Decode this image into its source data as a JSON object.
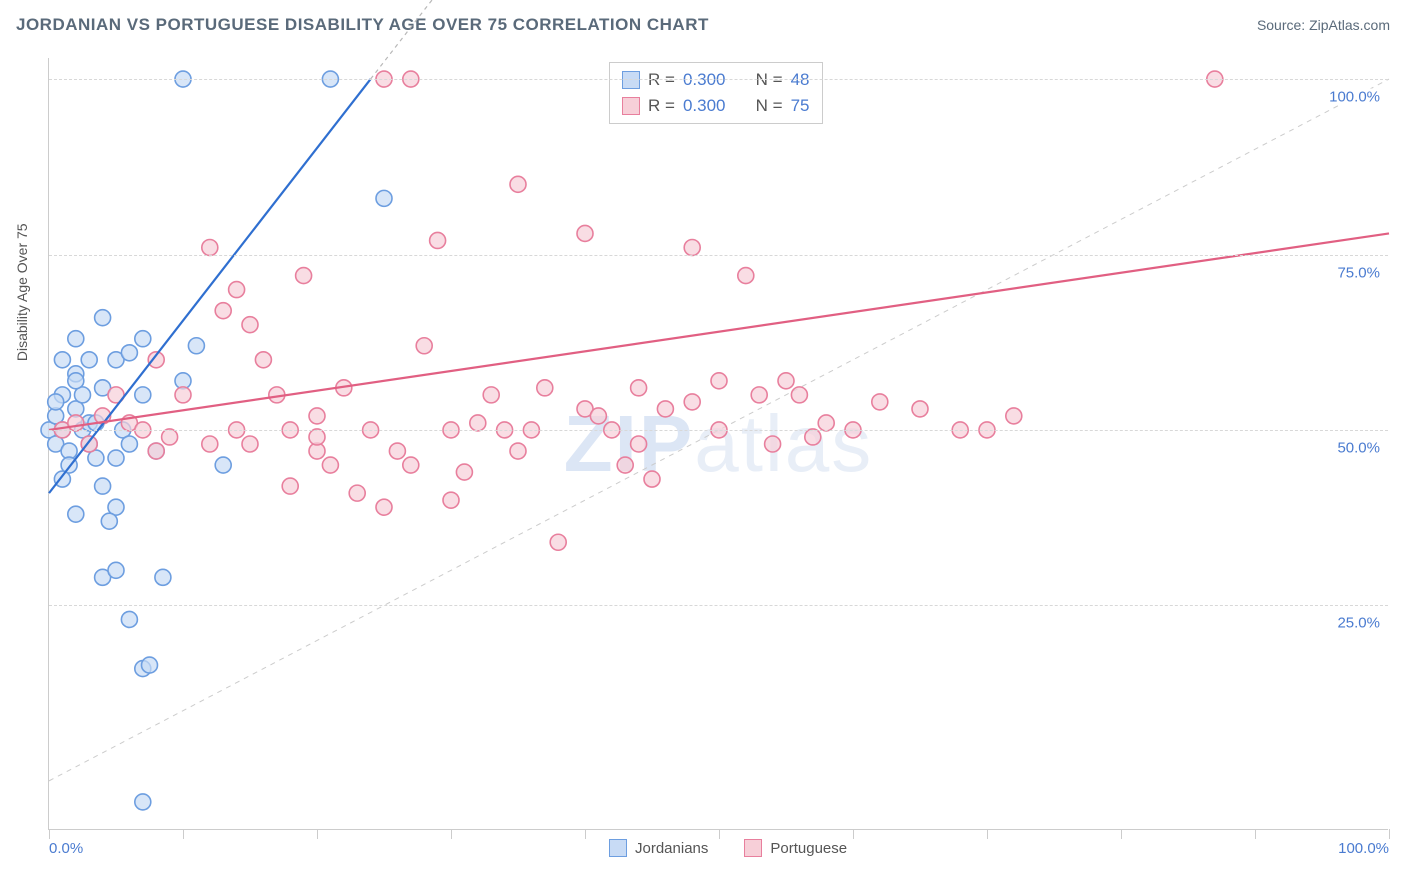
{
  "header": {
    "title": "JORDANIAN VS PORTUGUESE DISABILITY AGE OVER 75 CORRELATION CHART",
    "source_prefix": "Source: ",
    "source_name": "ZipAtlas.com"
  },
  "watermark": {
    "bold": "ZIP",
    "rest": "atlas"
  },
  "chart": {
    "type": "scatter",
    "ylabel": "Disability Age Over 75",
    "background_color": "#ffffff",
    "grid_color": "#d8d8d8",
    "axis_color": "#cccccc",
    "tick_label_color": "#4a7bd0",
    "xlim": [
      0,
      100
    ],
    "ylim": [
      -7,
      103
    ],
    "xtick_positions": [
      0,
      10,
      20,
      30,
      40,
      50,
      60,
      70,
      80,
      90,
      100
    ],
    "xtick_labels": {
      "0": "0.0%",
      "100": "100.0%"
    },
    "ytick_lines": [
      25,
      50,
      75,
      100
    ],
    "ytick_labels": {
      "25": "25.0%",
      "50": "50.0%",
      "75": "75.0%",
      "100": "100.0%"
    },
    "marker_radius": 8,
    "marker_stroke_width": 1.6,
    "series": {
      "jordanians": {
        "label": "Jordanians",
        "fill": "#c8dbf5",
        "stroke": "#6d9ee0",
        "fill_opacity": 0.7,
        "regression": {
          "x1": 0,
          "y1": 41,
          "x2": 24,
          "y2": 100,
          "color": "#2f6fd0",
          "width": 2.2,
          "extend_dashed_to_x": 42
        },
        "points": [
          [
            0,
            50
          ],
          [
            0.5,
            48
          ],
          [
            0.5,
            52
          ],
          [
            1,
            55
          ],
          [
            1,
            60
          ],
          [
            1,
            50
          ],
          [
            1.5,
            47
          ],
          [
            1.5,
            45
          ],
          [
            2,
            58
          ],
          [
            2,
            53
          ],
          [
            2,
            63
          ],
          [
            2,
            38
          ],
          [
            2.5,
            55
          ],
          [
            2.5,
            50
          ],
          [
            3,
            48
          ],
          [
            3,
            60
          ],
          [
            3,
            51
          ],
          [
            3.5,
            46
          ],
          [
            4,
            42
          ],
          [
            4,
            66
          ],
          [
            4,
            56
          ],
          [
            4,
            29
          ],
          [
            5,
            46
          ],
          [
            5,
            60
          ],
          [
            5,
            30
          ],
          [
            5,
            39
          ],
          [
            5.5,
            50
          ],
          [
            6,
            61
          ],
          [
            6,
            48
          ],
          [
            6,
            23
          ],
          [
            7,
            55
          ],
          [
            7,
            -3
          ],
          [
            7,
            63
          ],
          [
            7,
            16
          ],
          [
            7.5,
            16.5
          ],
          [
            8,
            47
          ],
          [
            8.5,
            29
          ],
          [
            10,
            100
          ],
          [
            10,
            57
          ],
          [
            11,
            62
          ],
          [
            13,
            45
          ],
          [
            21,
            100
          ],
          [
            25,
            83
          ],
          [
            4.5,
            37
          ],
          [
            3.5,
            51
          ],
          [
            2,
            57
          ],
          [
            1,
            43
          ],
          [
            0.5,
            54
          ]
        ]
      },
      "portuguese": {
        "label": "Portuguese",
        "fill": "#f7cfd8",
        "stroke": "#e87f9d",
        "fill_opacity": 0.7,
        "regression": {
          "x1": 0,
          "y1": 50,
          "x2": 100,
          "y2": 78,
          "color": "#e15f82",
          "width": 2.2
        },
        "points": [
          [
            1,
            50
          ],
          [
            2,
            51
          ],
          [
            3,
            48
          ],
          [
            4,
            52
          ],
          [
            5,
            55
          ],
          [
            6,
            51
          ],
          [
            7,
            50
          ],
          [
            8,
            47
          ],
          [
            8,
            60
          ],
          [
            9,
            49
          ],
          [
            10,
            55
          ],
          [
            12,
            48
          ],
          [
            12,
            76
          ],
          [
            13,
            67
          ],
          [
            14,
            50
          ],
          [
            14,
            70
          ],
          [
            15,
            48
          ],
          [
            15,
            65
          ],
          [
            16,
            60
          ],
          [
            17,
            55
          ],
          [
            18,
            50
          ],
          [
            18,
            42
          ],
          [
            19,
            72
          ],
          [
            20,
            47
          ],
          [
            20,
            52
          ],
          [
            21,
            45
          ],
          [
            22,
            56
          ],
          [
            23,
            41
          ],
          [
            24,
            50
          ],
          [
            25,
            39
          ],
          [
            25,
            100
          ],
          [
            26,
            47
          ],
          [
            27,
            45
          ],
          [
            27,
            100
          ],
          [
            28,
            62
          ],
          [
            29,
            77
          ],
          [
            30,
            40
          ],
          [
            31,
            44
          ],
          [
            32,
            51
          ],
          [
            33,
            55
          ],
          [
            34,
            50
          ],
          [
            35,
            85
          ],
          [
            35,
            47
          ],
          [
            36,
            50
          ],
          [
            37,
            56
          ],
          [
            38,
            34
          ],
          [
            40,
            78
          ],
          [
            40,
            53
          ],
          [
            41,
            52
          ],
          [
            42,
            50
          ],
          [
            43,
            45
          ],
          [
            44,
            48
          ],
          [
            44,
            56
          ],
          [
            45,
            43
          ],
          [
            46,
            53
          ],
          [
            48,
            54
          ],
          [
            48,
            76
          ],
          [
            50,
            50
          ],
          [
            50,
            57
          ],
          [
            52,
            72
          ],
          [
            53,
            55
          ],
          [
            54,
            48
          ],
          [
            55,
            57
          ],
          [
            56,
            55
          ],
          [
            57,
            49
          ],
          [
            58,
            51
          ],
          [
            60,
            50
          ],
          [
            62,
            54
          ],
          [
            65,
            53
          ],
          [
            68,
            50
          ],
          [
            70,
            50
          ],
          [
            72,
            52
          ],
          [
            87,
            100
          ],
          [
            30,
            50
          ],
          [
            20,
            49
          ]
        ]
      }
    },
    "stats_box": {
      "border_color": "#cccccc",
      "text_color": "#555555",
      "value_color": "#4a7bd0",
      "rows": [
        {
          "series": "jordanians",
          "r": "0.300",
          "n": "48"
        },
        {
          "series": "portuguese",
          "r": "0.300",
          "n": "75"
        }
      ],
      "labels": {
        "r": "R =",
        "n": "N ="
      }
    }
  }
}
